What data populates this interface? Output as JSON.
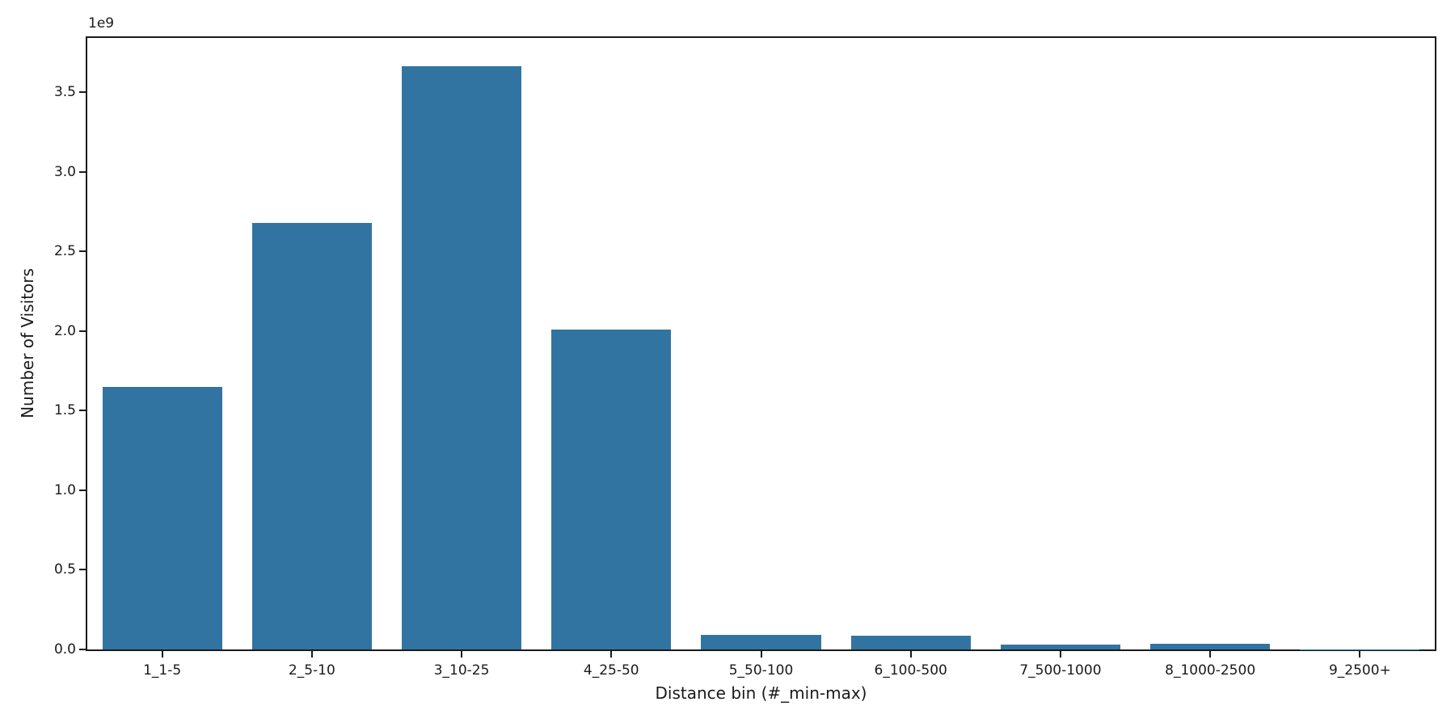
{
  "figure": {
    "background": "#ffffff"
  },
  "chart_data": {
    "type": "bar",
    "title": "",
    "xlabel": "Distance bin (#_min-max)",
    "ylabel": "Number of Visitors",
    "y_offset_text": "1e9",
    "categories": [
      "1_1-5",
      "2_5-10",
      "3_10-25",
      "4_25-50",
      "5_50-100",
      "6_100-500",
      "7_500-1000",
      "8_1000-2500",
      "9_2500+"
    ],
    "values": [
      1650000000,
      2680000000,
      3660000000,
      2010000000,
      90000000,
      85000000,
      30000000,
      35000000,
      2000000
    ],
    "ylim": [
      0,
      3840000000
    ],
    "yticks": {
      "values": [
        0,
        500000000,
        1000000000,
        1500000000,
        2000000000,
        2500000000,
        3000000000,
        3500000000
      ],
      "labels": [
        "0.0",
        "0.5",
        "1.0",
        "1.5",
        "2.0",
        "2.5",
        "3.0",
        "3.5"
      ]
    },
    "bar_color": "#3274a1",
    "bar_width_fraction": 0.8,
    "grid": false,
    "legend_position": "none",
    "axis_color": "#1a1a1a"
  }
}
